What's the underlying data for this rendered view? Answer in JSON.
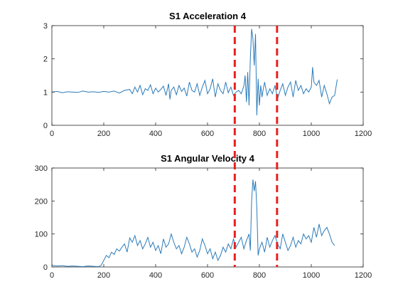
{
  "colors": {
    "line": "#2b7bba",
    "marker": "#e8201e",
    "axis": "#262626",
    "background": "#ffffff"
  },
  "chart_data": [
    {
      "type": "line",
      "title": "S1 Acceleration 4",
      "xlabel": "",
      "ylabel": "",
      "xlim": [
        0,
        1200
      ],
      "ylim": [
        0,
        3
      ],
      "xticks": [
        0,
        200,
        400,
        600,
        800,
        1000,
        1200
      ],
      "yticks": [
        0,
        1,
        2,
        3
      ],
      "grid": false,
      "vlines": [
        705,
        868
      ],
      "series": [
        {
          "x": [
            0,
            20,
            40,
            60,
            80,
            100,
            120,
            140,
            160,
            180,
            200,
            220,
            240,
            260,
            280,
            300,
            310,
            320,
            330,
            340,
            350,
            360,
            370,
            380,
            390,
            400,
            410,
            420,
            430,
            440,
            450,
            455,
            460,
            470,
            480,
            490,
            500,
            510,
            520,
            530,
            540,
            550,
            560,
            570,
            580,
            590,
            600,
            610,
            620,
            630,
            640,
            650,
            660,
            670,
            680,
            690,
            700,
            710,
            720,
            730,
            740,
            745,
            750,
            755,
            760,
            765,
            770,
            775,
            780,
            785,
            790,
            795,
            800,
            805,
            810,
            815,
            820,
            830,
            840,
            850,
            860,
            870,
            880,
            890,
            900,
            910,
            920,
            930,
            940,
            950,
            960,
            970,
            980,
            990,
            1000,
            1005,
            1010,
            1020,
            1030,
            1040,
            1050,
            1060,
            1070,
            1080,
            1090,
            1100
          ],
          "y": [
            1.0,
            1.02,
            0.98,
            1.01,
            1.0,
            0.99,
            1.03,
            1.0,
            1.01,
            0.99,
            1.02,
            1.0,
            1.03,
            0.97,
            1.05,
            1.08,
            0.95,
            1.15,
            1.0,
            1.2,
            0.92,
            1.1,
            1.05,
            1.22,
            0.95,
            1.12,
            1.0,
            1.08,
            1.18,
            0.9,
            1.25,
            0.78,
            1.05,
            1.15,
            0.92,
            1.2,
            1.02,
            1.12,
            0.88,
            1.3,
            1.05,
            1.0,
            1.25,
            0.9,
            1.15,
            1.35,
            0.95,
            1.1,
            1.4,
            0.85,
            1.25,
            1.05,
            0.95,
            1.3,
            0.98,
            1.15,
            0.9,
            1.0,
            1.05,
            0.95,
            1.18,
            1.5,
            0.7,
            1.6,
            0.6,
            2.0,
            2.9,
            2.6,
            1.8,
            2.75,
            0.3,
            1.4,
            0.6,
            1.2,
            0.85,
            1.1,
            1.3,
            0.9,
            1.1,
            0.95,
            1.2,
            0.8,
            1.05,
            1.25,
            0.9,
            1.15,
            1.3,
            0.85,
            1.35,
            1.05,
            1.2,
            0.95,
            1.1,
            1.0,
            1.15,
            1.75,
            1.3,
            1.2,
            1.35,
            0.85,
            1.2,
            0.95,
            0.65,
            0.85,
            0.9,
            1.38
          ]
        }
      ]
    },
    {
      "type": "line",
      "title": "S1 Angular Velocity 4",
      "xlabel": "",
      "ylabel": "",
      "xlim": [
        0,
        1200
      ],
      "ylim": [
        0,
        300
      ],
      "xticks": [
        0,
        200,
        400,
        600,
        800,
        1000,
        1200
      ],
      "yticks": [
        0,
        100,
        200,
        300
      ],
      "grid": false,
      "vlines": [
        705,
        868
      ],
      "series": [
        {
          "x": [
            0,
            20,
            40,
            60,
            80,
            100,
            120,
            140,
            160,
            180,
            190,
            200,
            210,
            220,
            230,
            240,
            250,
            260,
            270,
            280,
            290,
            300,
            310,
            320,
            330,
            340,
            350,
            360,
            370,
            380,
            390,
            400,
            410,
            420,
            430,
            440,
            450,
            460,
            470,
            480,
            490,
            500,
            510,
            520,
            530,
            540,
            550,
            560,
            570,
            580,
            590,
            600,
            610,
            620,
            630,
            640,
            650,
            660,
            670,
            680,
            690,
            700,
            710,
            720,
            730,
            740,
            750,
            760,
            765,
            770,
            775,
            780,
            785,
            790,
            795,
            800,
            810,
            820,
            830,
            840,
            850,
            860,
            870,
            880,
            890,
            900,
            910,
            920,
            930,
            940,
            950,
            960,
            970,
            980,
            990,
            1000,
            1010,
            1020,
            1030,
            1040,
            1050,
            1060,
            1070,
            1080,
            1090
          ],
          "y": [
            5,
            3,
            4,
            2,
            3,
            2,
            1,
            3,
            2,
            1,
            5,
            20,
            35,
            28,
            45,
            38,
            55,
            48,
            60,
            70,
            45,
            88,
            75,
            95,
            65,
            80,
            55,
            70,
            90,
            60,
            75,
            50,
            65,
            40,
            85,
            60,
            70,
            100,
            75,
            55,
            65,
            40,
            60,
            90,
            70,
            45,
            55,
            30,
            50,
            85,
            65,
            40,
            55,
            25,
            45,
            20,
            35,
            60,
            45,
            70,
            55,
            85,
            60,
            75,
            90,
            55,
            80,
            100,
            50,
            200,
            265,
            230,
            260,
            180,
            35,
            55,
            75,
            45,
            90,
            60,
            80,
            95,
            70,
            55,
            100,
            75,
            50,
            65,
            90,
            60,
            80,
            70,
            100,
            85,
            95,
            75,
            120,
            90,
            130,
            95,
            110,
            120,
            100,
            75,
            65
          ]
        }
      ]
    }
  ]
}
